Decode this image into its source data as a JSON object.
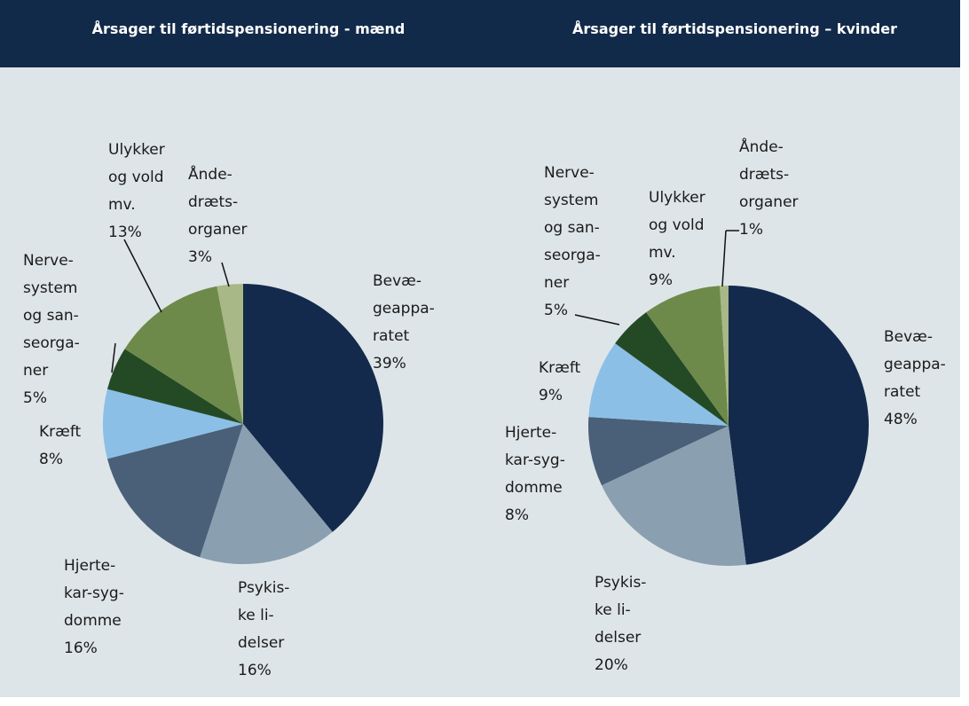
{
  "chart_data": [
    {
      "type": "pie",
      "title": "Årsager til førtidspensionering - mænd",
      "categories": [
        [
          "Bevæ-",
          "geappa-",
          "ratet"
        ],
        [
          "Psykis-",
          "ke li-",
          "delser"
        ],
        [
          "Hjerte-",
          "kar-syg-",
          "domme"
        ],
        [
          "Kræft"
        ],
        [
          "Nerve-",
          "system",
          "og san-",
          "seorga-",
          "ner"
        ],
        [
          "Ulykker",
          "og vold",
          "mv."
        ],
        [
          "Ånde-",
          "dræts-",
          "organer"
        ]
      ],
      "values": [
        39,
        16,
        16,
        8,
        5,
        13,
        3
      ],
      "value_labels": [
        "39%",
        "16%",
        "16%",
        "8%",
        "5%",
        "13%",
        "3%"
      ],
      "colors": [
        "#132a4c",
        "#8a9fb0",
        "#4a5f78",
        "#8bbfe6",
        "#244a25",
        "#6e8a4a",
        "#a8b886"
      ]
    },
    {
      "type": "pie",
      "title": "Årsager til førtidspensionering – kvinder",
      "categories": [
        [
          "Bevæ-",
          "geappa-",
          "ratet"
        ],
        [
          "Psykis-",
          "ke li-",
          "delser"
        ],
        [
          "Hjerte-",
          "kar-syg-",
          "domme"
        ],
        [
          "Kræft"
        ],
        [
          "Nerve-",
          "system",
          "og san-",
          "seorga-",
          "ner"
        ],
        [
          "Ulykker",
          "og vold",
          "mv."
        ],
        [
          "Ånde-",
          "dræts-",
          "organer"
        ]
      ],
      "values": [
        48,
        20,
        8,
        9,
        5,
        9,
        1
      ],
      "value_labels": [
        "48%",
        "20%",
        "8%",
        "9%",
        "5%",
        "9%",
        "1%"
      ],
      "colors": [
        "#132a4c",
        "#8a9fb0",
        "#4a5f78",
        "#8bbfe6",
        "#244a25",
        "#6e8a4a",
        "#a8b886"
      ]
    }
  ]
}
